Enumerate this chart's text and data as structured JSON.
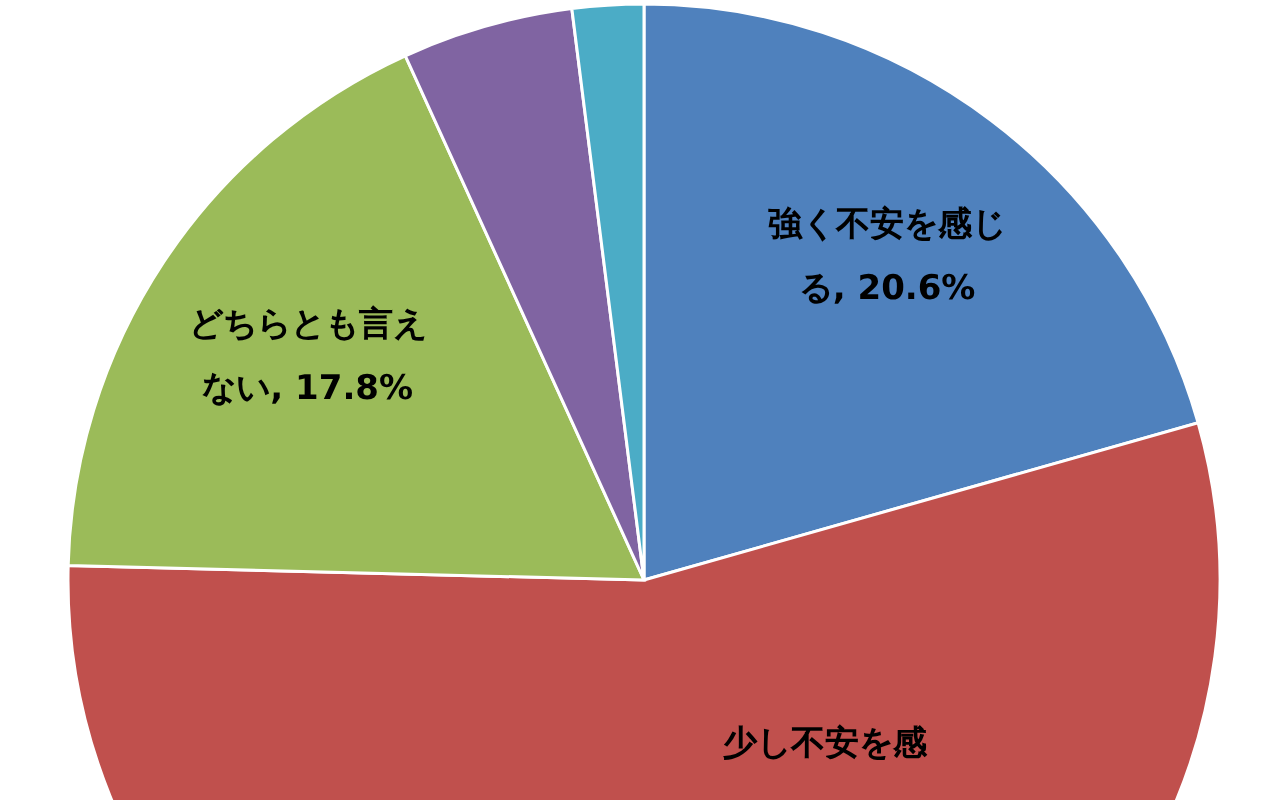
{
  "chart_data": {
    "type": "pie",
    "categories": [
      "強く不安を感じる",
      "少し不安を感",
      "どちらとも言えない",
      null,
      null
    ],
    "values": [
      20.6,
      54.8,
      17.8,
      4.8,
      2.0
    ],
    "value_labels": [
      "20.6%",
      null,
      "17.8%",
      null,
      null
    ],
    "colors": [
      "#4f81bd",
      "#c0504d",
      "#9bbb59",
      "#8064a2",
      "#4bacc6"
    ]
  }
}
